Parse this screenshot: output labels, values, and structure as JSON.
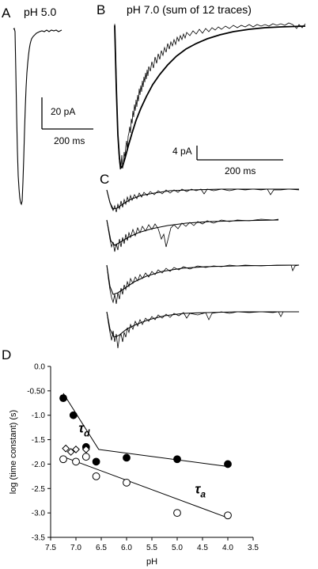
{
  "panels": {
    "a": {
      "letter": "A",
      "title": "pH 5.0",
      "scale_y": "20 pA",
      "scale_x": "200 ms"
    },
    "b": {
      "letter": "B",
      "title": "pH 7.0 (sum of 12 traces)",
      "scale_y": "4 pA",
      "scale_x": "200 ms"
    },
    "c": {
      "letter": "C"
    },
    "d": {
      "letter": "D"
    }
  },
  "chart_data": {
    "type": "scatter",
    "xlabel": "pH",
    "ylabel": "log (time constant) (s)",
    "xlim": [
      7.5,
      3.5
    ],
    "ylim": [
      -3.5,
      0.0
    ],
    "x_ticks": [
      "7.5",
      "7.0",
      "6.5",
      "6.0",
      "5.5",
      "5.0",
      "4.5",
      "4.0",
      "3.5"
    ],
    "y_ticks": [
      "0.0",
      "-0.50",
      "-1.0",
      "-1.5",
      "-2.0",
      "-2.5",
      "-3.0",
      "-3.5"
    ],
    "series": [
      {
        "name": "τd",
        "name_base": "τ",
        "name_sub": "d",
        "marker": "filled-circle",
        "x": [
          7.25,
          7.05,
          6.8,
          6.6,
          6.0,
          5.0,
          4.0
        ],
        "y": [
          -0.65,
          -1.0,
          -1.65,
          -1.95,
          -1.87,
          -1.9,
          -2.0
        ],
        "fit": {
          "x": [
            7.25,
            6.55,
            4.0
          ],
          "y": [
            -0.55,
            -1.7,
            -2.05
          ]
        }
      },
      {
        "name": "τa",
        "name_base": "τ",
        "name_sub": "a",
        "marker": "open-circle",
        "x": [
          7.25,
          7.0,
          6.8,
          6.6,
          6.0,
          5.0,
          4.0
        ],
        "y": [
          -1.9,
          -1.95,
          -1.85,
          -2.25,
          -2.38,
          -3.0,
          -3.05
        ],
        "fit": {
          "x": [
            7.25,
            4.0
          ],
          "y": [
            -1.85,
            -3.1
          ]
        }
      },
      {
        "name": "",
        "marker": "open-diamond",
        "x": [
          7.2,
          7.1,
          7.0,
          6.8
        ],
        "y": [
          -1.68,
          -1.75,
          -1.7,
          -1.7
        ]
      }
    ]
  }
}
